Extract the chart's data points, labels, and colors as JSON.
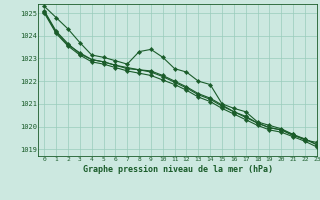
{
  "title": "Graphe pression niveau de la mer (hPa)",
  "bg_color": "#cce8e0",
  "grid_color": "#99ccbb",
  "line_color": "#1a5c2a",
  "xlim": [
    -0.5,
    23
  ],
  "ylim": [
    1018.7,
    1025.4
  ],
  "yticks": [
    1019,
    1020,
    1021,
    1022,
    1023,
    1024,
    1025
  ],
  "xticks": [
    0,
    1,
    2,
    3,
    4,
    5,
    6,
    7,
    8,
    9,
    10,
    11,
    12,
    13,
    14,
    15,
    16,
    17,
    18,
    19,
    20,
    21,
    22,
    23
  ],
  "series": [
    [
      1025.3,
      1024.8,
      1024.3,
      1023.7,
      1023.15,
      1023.05,
      1022.9,
      1022.75,
      1023.3,
      1023.4,
      1023.05,
      1022.55,
      1022.4,
      1022.0,
      1021.85,
      1021.0,
      1020.8,
      1020.65,
      1020.2,
      1020.05,
      1019.9,
      1019.65,
      1019.4,
      1019.3
    ],
    [
      1025.1,
      1024.2,
      1023.65,
      1023.2,
      1022.95,
      1022.85,
      1022.7,
      1022.55,
      1022.5,
      1022.45,
      1022.25,
      1022.0,
      1021.75,
      1021.45,
      1021.25,
      1020.95,
      1020.65,
      1020.45,
      1020.15,
      1019.95,
      1019.85,
      1019.6,
      1019.45,
      1019.2
    ],
    [
      1025.05,
      1024.15,
      1023.6,
      1023.25,
      1022.95,
      1022.85,
      1022.7,
      1022.6,
      1022.5,
      1022.4,
      1022.2,
      1021.95,
      1021.7,
      1021.4,
      1021.2,
      1020.9,
      1020.65,
      1020.4,
      1020.15,
      1019.95,
      1019.85,
      1019.65,
      1019.45,
      1019.2
    ],
    [
      1025.0,
      1024.1,
      1023.55,
      1023.15,
      1022.85,
      1022.75,
      1022.6,
      1022.45,
      1022.35,
      1022.25,
      1022.05,
      1021.85,
      1021.6,
      1021.3,
      1021.1,
      1020.8,
      1020.55,
      1020.3,
      1020.05,
      1019.85,
      1019.75,
      1019.55,
      1019.35,
      1019.1
    ]
  ]
}
